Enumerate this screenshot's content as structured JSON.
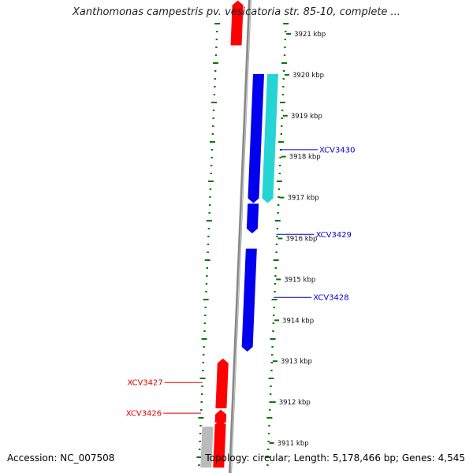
{
  "title": "Xanthomonas campestris pv. vesicatoria str. 85-10, complete ...",
  "footer": {
    "accession": "Accession: NC_007508",
    "stats": "Topology: circular; Length: 5,178,466 bp; Genes: 4,545"
  },
  "colors": {
    "forward_gene": "#ff0000",
    "reverse_gene": "#0000ee",
    "rna_gene": "#00cccc",
    "other_feature": "#bbbbbb",
    "backbone": "#888888",
    "tick_dots": "#007700",
    "forward_label": "#dd0000",
    "reverse_label": "#0000cc"
  },
  "scale": [
    {
      "label": "3921 kbp",
      "kbp": 3921
    },
    {
      "label": "3920 kbp",
      "kbp": 3920
    },
    {
      "label": "3919 kbp",
      "kbp": 3919
    },
    {
      "label": "3918 kbp",
      "kbp": 3918
    },
    {
      "label": "3917 kbp",
      "kbp": 3917
    },
    {
      "label": "3916 kbp",
      "kbp": 3916
    },
    {
      "label": "3915 kbp",
      "kbp": 3915
    },
    {
      "label": "3914 kbp",
      "kbp": 3914
    },
    {
      "label": "3913 kbp",
      "kbp": 3913
    },
    {
      "label": "3912 kbp",
      "kbp": 3912
    },
    {
      "label": "3911 kbp",
      "kbp": 3911
    }
  ],
  "features": [
    {
      "id": "fwd-top",
      "strand": "forward",
      "kind": "gene",
      "start_kbp": 3920.72,
      "end_kbp": 3921.7
    },
    {
      "id": "XCV3430-blue",
      "strand": "reverse",
      "kind": "gene",
      "start_kbp": 3916.98,
      "end_kbp": 3920.02
    },
    {
      "id": "XCV3430-cyan",
      "strand": "reverse",
      "kind": "rna",
      "start_kbp": 3916.98,
      "end_kbp": 3920.02
    },
    {
      "id": "XCV3429",
      "strand": "reverse",
      "kind": "gene",
      "start_kbp": 3916.24,
      "end_kbp": 3916.85
    },
    {
      "id": "XCV3428",
      "strand": "reverse",
      "kind": "gene",
      "start_kbp": 3913.35,
      "end_kbp": 3915.75
    },
    {
      "id": "XCV3427",
      "strand": "forward",
      "kind": "gene",
      "start_kbp": 3911.85,
      "end_kbp": 3912.95
    },
    {
      "id": "XCV3426",
      "strand": "forward",
      "kind": "gene",
      "start_kbp": 3911.5,
      "end_kbp": 3911.7
    },
    {
      "id": "fwd-bottom",
      "strand": "forward",
      "kind": "gene",
      "start_kbp": 3910.4,
      "end_kbp": 3911.45
    },
    {
      "id": "grey-bottom",
      "strand": "forward",
      "kind": "other",
      "start_kbp": 3910.4,
      "end_kbp": 3911.4
    }
  ],
  "labels": [
    {
      "text": "XCV3430",
      "side": "right",
      "kbp": 3918.17
    },
    {
      "text": "XCV3429",
      "side": "right",
      "kbp": 3916.1
    },
    {
      "text": "XCV3428",
      "side": "right",
      "kbp": 3914.56
    },
    {
      "text": "XCV3427",
      "side": "left",
      "kbp": 3912.48
    },
    {
      "text": "XCV3426",
      "side": "left",
      "kbp": 3911.73
    }
  ]
}
